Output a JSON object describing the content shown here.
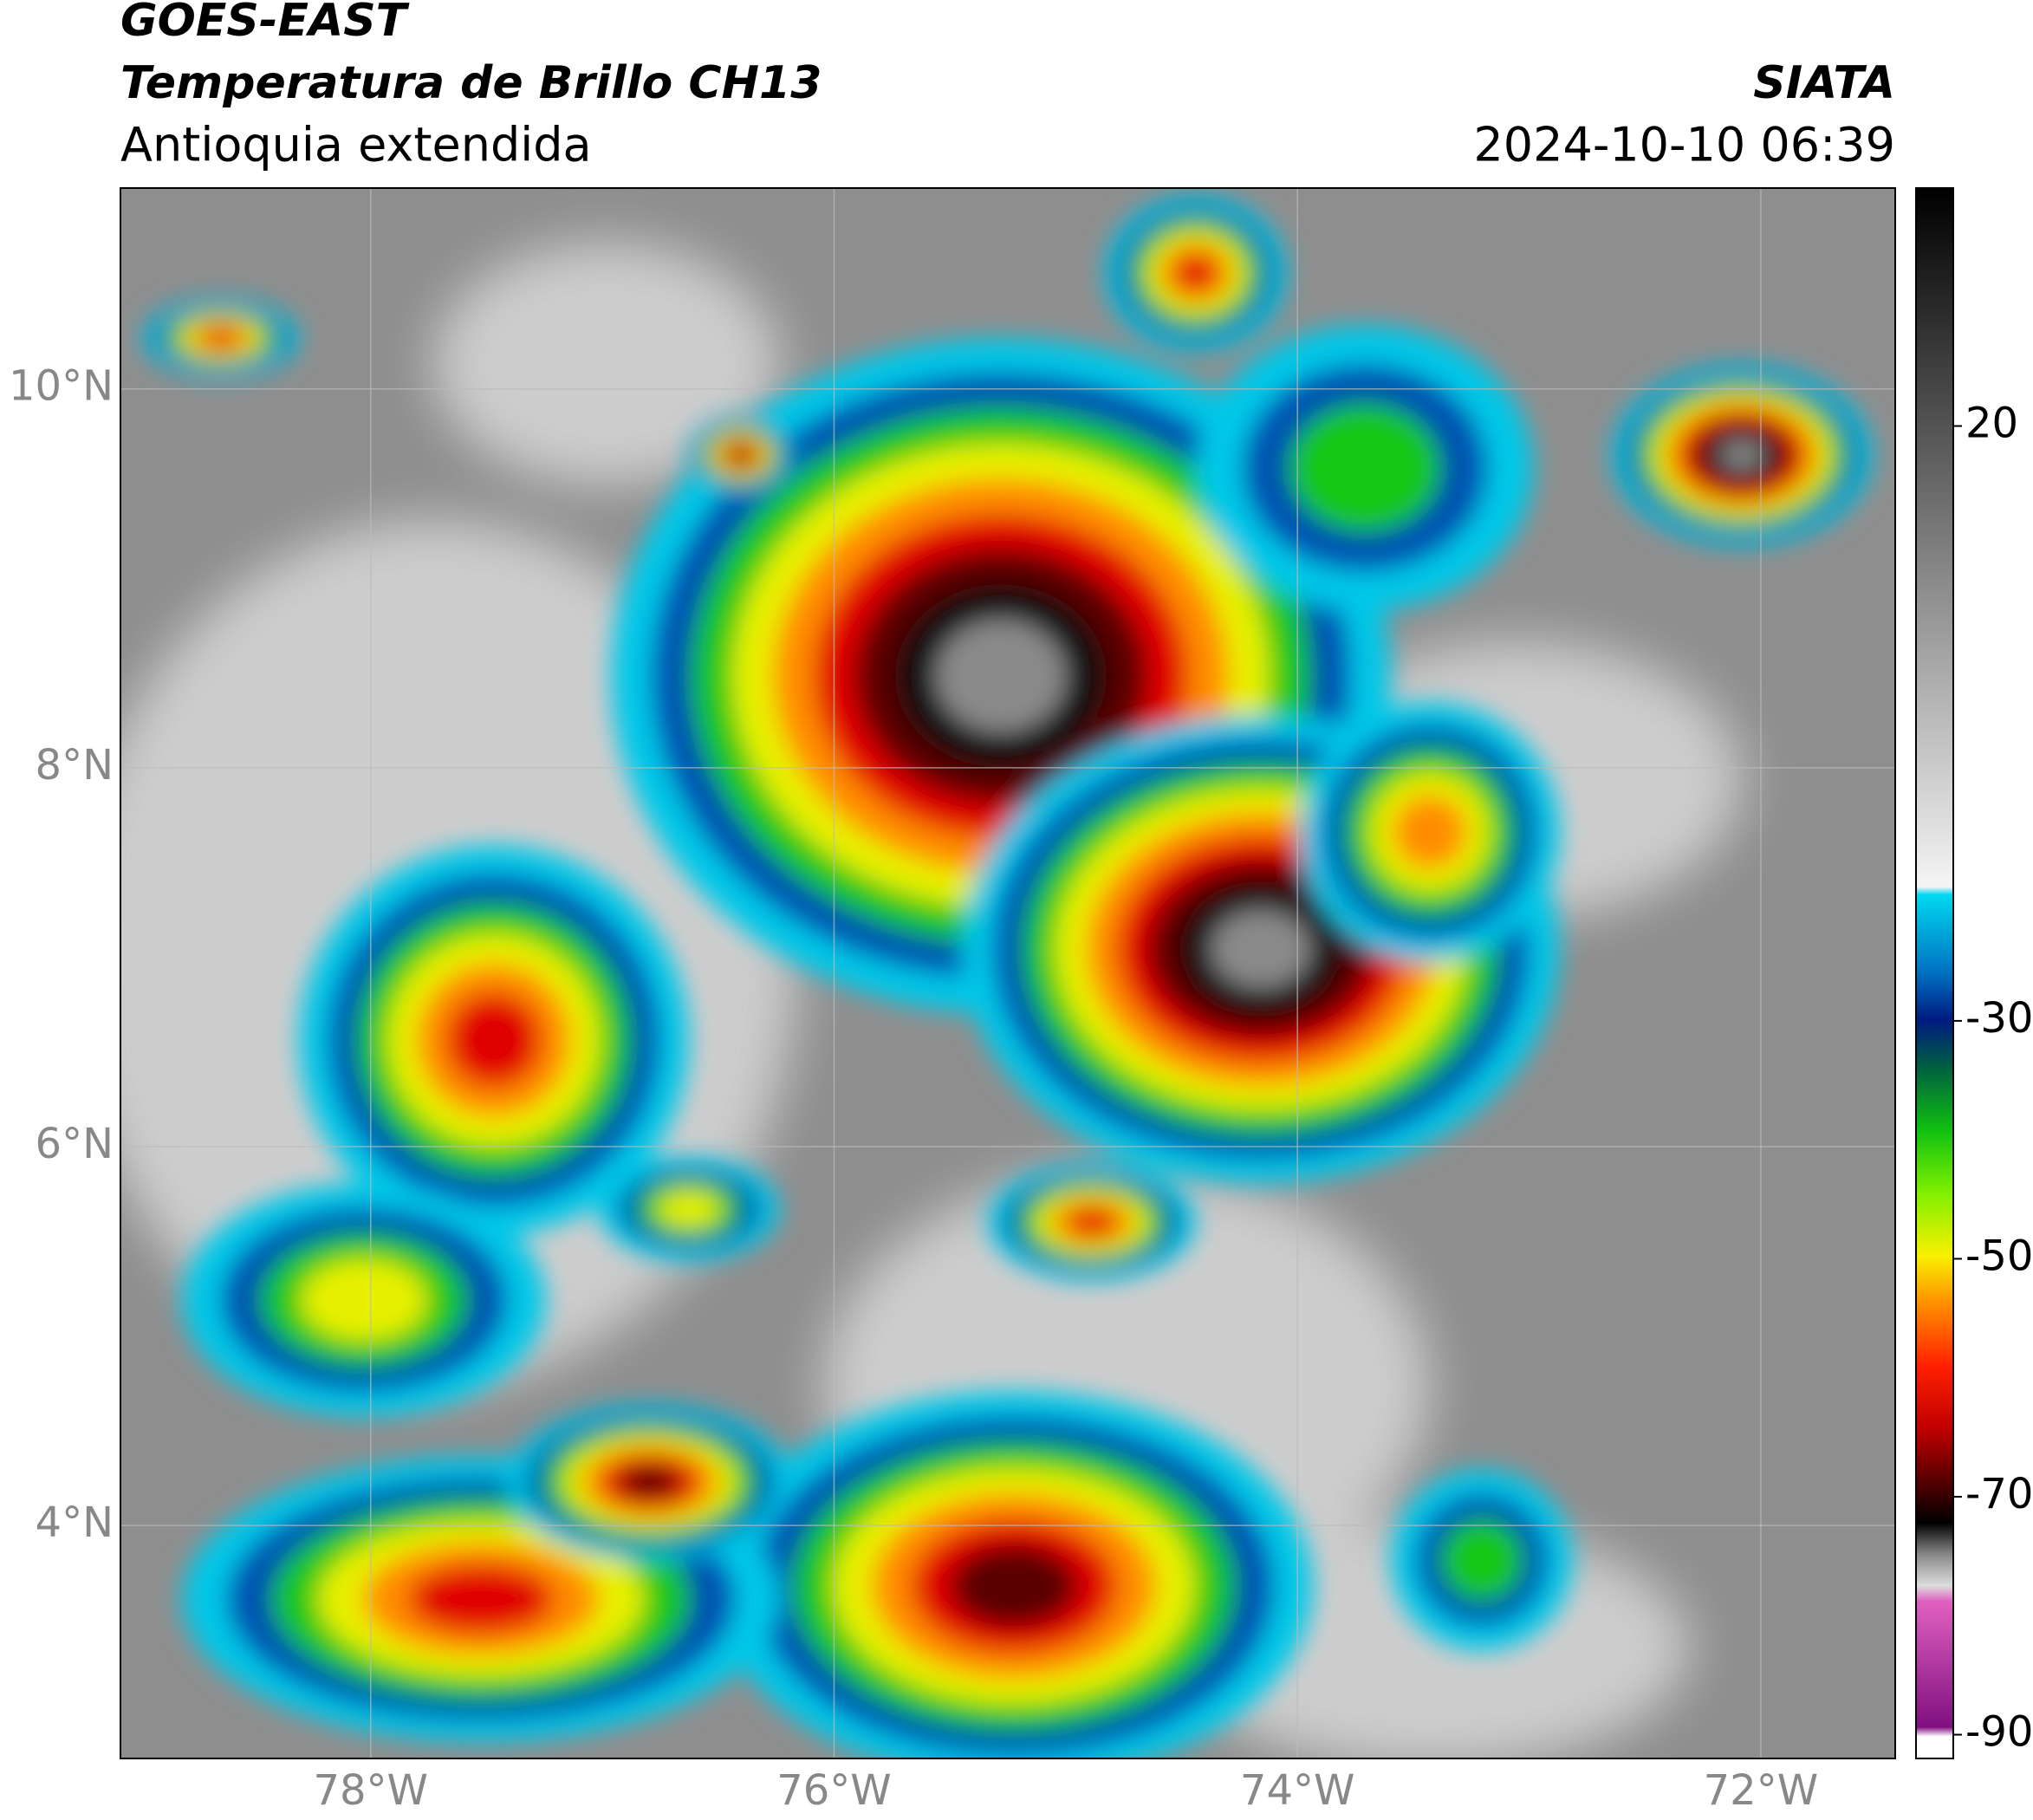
{
  "header": {
    "title": "GOES-EAST",
    "subtitle": "Temperatura de Brillo CH13",
    "region": "Antioquia extendida",
    "source": "SIATA",
    "timestamp": "2024-10-10 06:39"
  },
  "map": {
    "xlim": [
      -79.08,
      -71.42
    ],
    "ylim": [
      2.77,
      11.06
    ],
    "xticks": [
      {
        "value": -78,
        "label": "78°W"
      },
      {
        "value": -76,
        "label": "76°W"
      },
      {
        "value": -74,
        "label": "74°W"
      },
      {
        "value": -72,
        "label": "72°W"
      }
    ],
    "yticks": [
      {
        "value": 10,
        "label": "10°N"
      },
      {
        "value": 8,
        "label": "8°N"
      },
      {
        "value": 6,
        "label": "6°N"
      },
      {
        "value": 4,
        "label": "4°N"
      }
    ],
    "grid": true
  },
  "colorbar": {
    "clim": [
      -92,
      40
    ],
    "ticks": [
      20,
      -30,
      -50,
      -70,
      -90
    ]
  }
}
